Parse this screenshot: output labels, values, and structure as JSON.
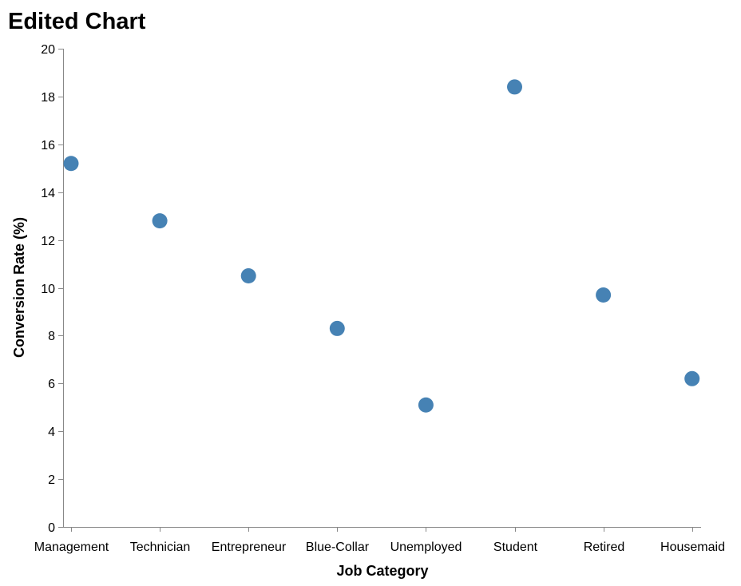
{
  "chart_data": {
    "type": "scatter",
    "title": "Edited Chart",
    "xlabel": "Job Category",
    "ylabel": "Conversion Rate (%)",
    "categories": [
      "Management",
      "Technician",
      "Entrepreneur",
      "Blue-Collar",
      "Unemployed",
      "Student",
      "Retired",
      "Housemaid"
    ],
    "values": [
      15.2,
      12.8,
      10.5,
      8.3,
      5.1,
      18.4,
      9.7,
      6.2
    ],
    "ylim": [
      0,
      20
    ],
    "yticks": [
      0,
      2,
      4,
      6,
      8,
      10,
      12,
      14,
      16,
      18,
      20
    ],
    "grid": false,
    "legend": "none",
    "point_color": "#4682b4"
  }
}
